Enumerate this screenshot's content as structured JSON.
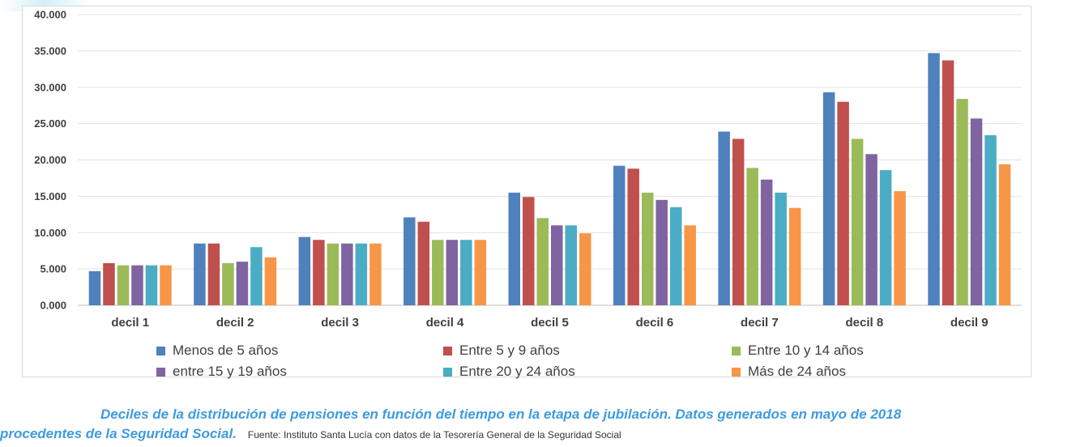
{
  "chart_data": {
    "type": "bar",
    "title": "",
    "xlabel": "",
    "ylabel": "",
    "ylim": [
      0,
      40000
    ],
    "yticks": [
      0,
      5000,
      10000,
      15000,
      20000,
      25000,
      30000,
      35000,
      40000
    ],
    "ytick_labels": [
      "0.000",
      "5.000",
      "10.000",
      "15.000",
      "20.000",
      "25.000",
      "30.000",
      "35.000",
      "40.000"
    ],
    "grid": true,
    "legend_position": "bottom",
    "categories": [
      "decil 1",
      "decil 2",
      "decil 3",
      "decil 4",
      "decil 5",
      "decil 6",
      "decil 7",
      "decil 8",
      "decil 9"
    ],
    "series": [
      {
        "name": "Menos de 5 años",
        "color": "#4f81bd",
        "values": [
          4700,
          8500,
          9400,
          12100,
          15500,
          19200,
          23900,
          29300,
          34700
        ]
      },
      {
        "name": "Entre 5 y 9 años",
        "color": "#c0504d",
        "values": [
          5800,
          8500,
          9000,
          11500,
          14900,
          18800,
          22900,
          28000,
          33700
        ]
      },
      {
        "name": "Entre 10 y 14 años",
        "color": "#9bbb59",
        "values": [
          5500,
          5800,
          8500,
          9000,
          12000,
          15500,
          18900,
          22900,
          28400
        ]
      },
      {
        "name": "entre 15 y 19 años",
        "color": "#8064a2",
        "values": [
          5500,
          6000,
          8500,
          9000,
          11000,
          14500,
          17300,
          20800,
          25700
        ]
      },
      {
        "name": "Entre 20 y 24 años",
        "color": "#4bacc6",
        "values": [
          5500,
          8000,
          8500,
          9000,
          11000,
          13500,
          15500,
          18600,
          23400
        ]
      },
      {
        "name": "Más de 24 años",
        "color": "#f79646",
        "values": [
          5500,
          6600,
          8500,
          9000,
          9900,
          11000,
          13400,
          15700,
          19400
        ]
      }
    ]
  },
  "caption": {
    "line1": "Deciles de la distribución de pensiones en función del tiempo en la etapa de jubilación. Datos generados en mayo de 2018",
    "line2": "procedentes de la Seguridad Social.",
    "source": "Fuente: Instituto Santa Lucía con datos de la Tesorería General de la Seguridad Social"
  }
}
